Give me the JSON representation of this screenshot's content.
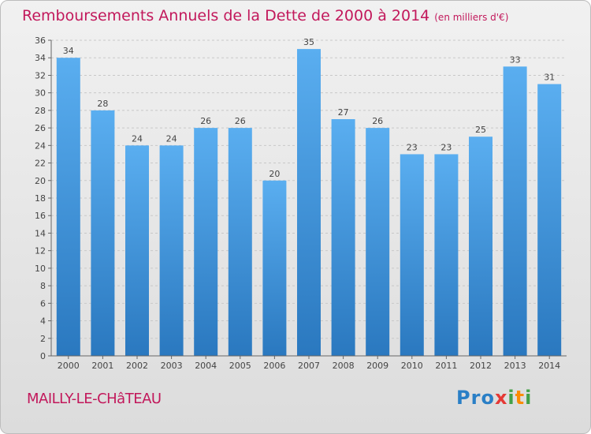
{
  "title": "Remboursements Annuels de la Dette de 2000 à 2014",
  "subtitle": "(en milliers d'€)",
  "commune": "MAILLY-LE-CHâTEAU",
  "logo": {
    "letters": [
      "P",
      "r",
      "o",
      "x",
      "i",
      "t",
      "i"
    ],
    "colors": [
      "#2a7fc6",
      "#2a7fc6",
      "#2a7fc6",
      "#e53935",
      "#43a047",
      "#fb8c00",
      "#43a047"
    ]
  },
  "chart_data": {
    "type": "bar",
    "categories": [
      "2000",
      "2001",
      "2002",
      "2003",
      "2004",
      "2005",
      "2006",
      "2007",
      "2008",
      "2009",
      "2010",
      "2011",
      "2012",
      "2013",
      "2014"
    ],
    "values": [
      34,
      28,
      24,
      24,
      26,
      26,
      20,
      35,
      27,
      26,
      23,
      23,
      25,
      33,
      31
    ],
    "ylim": [
      0,
      36
    ],
    "yticks": [
      0,
      2,
      4,
      6,
      8,
      10,
      12,
      14,
      16,
      18,
      20,
      22,
      24,
      26,
      28,
      30,
      32,
      34,
      36
    ],
    "grid": true,
    "bar_color": "#3a92d8"
  }
}
